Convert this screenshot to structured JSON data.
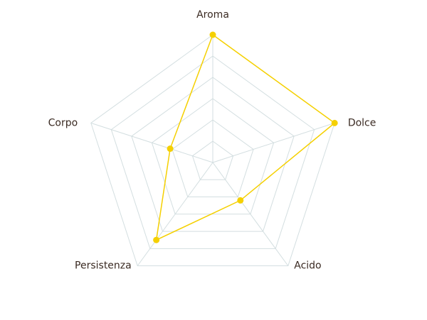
{
  "chart_data": {
    "type": "radar",
    "categories": [
      "Aroma",
      "Dolce",
      "Acido",
      "Persistenza",
      "Corpo"
    ],
    "series": [
      {
        "color": "#f5d000",
        "values": [
          6,
          6,
          2.2,
          4.5,
          2.1
        ]
      }
    ],
    "rlim": [
      0,
      6
    ],
    "rticks": [
      1,
      2,
      3,
      4,
      5,
      6
    ],
    "grid": true,
    "grid_color": "#d3dee0"
  }
}
